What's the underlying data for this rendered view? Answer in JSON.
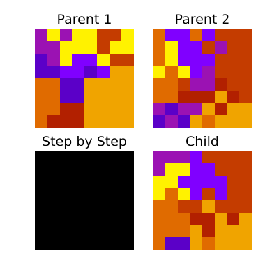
{
  "panels": {
    "parent1": {
      "title": "Parent 1",
      "grid": [
        [
          "#9B12B3",
          "#FFF200",
          "#9B12B3",
          "#FFF200",
          "#FFF200",
          "#C43C00",
          "#C43C00",
          "#FFF200"
        ],
        [
          "#9B12B3",
          "#9B12B3",
          "#FFF200",
          "#FFF200",
          "#FFF200",
          "#C43C00",
          "#FFF200",
          "#FFF200"
        ],
        [
          "#5B00C8",
          "#9B12B3",
          "#FFF200",
          "#8000FF",
          "#8000FF",
          "#FFF200",
          "#C43C00",
          "#C43C00"
        ],
        [
          "#5B00C8",
          "#5B00C8",
          "#8000FF",
          "#8000FF",
          "#5B00C8",
          "#8000FF",
          "#F0A400",
          "#F0A400"
        ],
        [
          "#E06B00",
          "#E06B00",
          "#5B00C8",
          "#5B00C8",
          "#F0A400",
          "#F0A400",
          "#F0A400",
          "#F0A400"
        ],
        [
          "#E06B00",
          "#E06B00",
          "#5B00C8",
          "#5B00C8",
          "#F0A400",
          "#F0A400",
          "#F0A400",
          "#F0A400"
        ],
        [
          "#E06B00",
          "#E06B00",
          "#B22000",
          "#B22000",
          "#F0A400",
          "#F0A400",
          "#F0A400",
          "#F0A400"
        ],
        [
          "#E06B00",
          "#B22000",
          "#B22000",
          "#B22000",
          "#F0A400",
          "#F0A400",
          "#F0A400",
          "#F0A400"
        ]
      ]
    },
    "parent2": {
      "title": "Parent 2",
      "grid": [
        [
          "#E06B00",
          "#8000FF",
          "#8000FF",
          "#E06B00",
          "#8000FF",
          "#C43C00",
          "#C43C00",
          "#C43C00"
        ],
        [
          "#E06B00",
          "#FFF200",
          "#8000FF",
          "#8000FF",
          "#C43C00",
          "#9B12B3",
          "#C43C00",
          "#C43C00"
        ],
        [
          "#E06B00",
          "#FFF200",
          "#8000FF",
          "#8000FF",
          "#8000FF",
          "#C43C00",
          "#C43C00",
          "#C43C00"
        ],
        [
          "#FFF200",
          "#E06B00",
          "#FFF200",
          "#8000FF",
          "#9B12B3",
          "#C43C00",
          "#C43C00",
          "#C43C00"
        ],
        [
          "#E06B00",
          "#E06B00",
          "#C43C00",
          "#9B12B3",
          "#9B12B3",
          "#B22000",
          "#C43C00",
          "#C43C00"
        ],
        [
          "#E06B00",
          "#E06B00",
          "#B22000",
          "#B22000",
          "#B22000",
          "#F0A400",
          "#B22000",
          "#C43C00"
        ],
        [
          "#9B12B3",
          "#5B00C8",
          "#9B12B3",
          "#9B12B3",
          "#F0A400",
          "#B22000",
          "#F0A400",
          "#F0A400"
        ],
        [
          "#5B00C8",
          "#9B12B3",
          "#5B00C8",
          "#F0A400",
          "#E06B00",
          "#F0A400",
          "#F0A400",
          "#F0A400"
        ]
      ]
    },
    "step_by_step": {
      "title": "Step by Step",
      "fill": "#000000"
    },
    "child": {
      "title": "Child",
      "grid": [
        [
          "#9B12B3",
          "#9B12B3",
          "#9B12B3",
          "#8000FF",
          "#C43C00",
          "#C43C00",
          "#C43C00",
          "#C43C00"
        ],
        [
          "#9B12B3",
          "#FFF200",
          "#FFF200",
          "#8000FF",
          "#8000FF",
          "#C43C00",
          "#C43C00",
          "#C43C00"
        ],
        [
          "#FFF200",
          "#FFF200",
          "#8000FF",
          "#8000FF",
          "#8000FF",
          "#8000FF",
          "#C43C00",
          "#C43C00"
        ],
        [
          "#FFF200",
          "#E06B00",
          "#FFF200",
          "#8000FF",
          "#C43C00",
          "#8000FF",
          "#C43C00",
          "#C43C00"
        ],
        [
          "#E06B00",
          "#E06B00",
          "#C43C00",
          "#C43C00",
          "#F0A400",
          "#C43C00",
          "#C43C00",
          "#C43C00"
        ],
        [
          "#E06B00",
          "#E06B00",
          "#E06B00",
          "#B22000",
          "#B22000",
          "#F0A400",
          "#B22000",
          "#F0A400"
        ],
        [
          "#E06B00",
          "#E06B00",
          "#E06B00",
          "#F0A400",
          "#B22000",
          "#F0A400",
          "#F0A400",
          "#F0A400"
        ],
        [
          "#E06B00",
          "#5B00C8",
          "#5B00C8",
          "#F0A400",
          "#E06B00",
          "#F0A400",
          "#F0A400",
          "#F0A400"
        ]
      ]
    }
  }
}
